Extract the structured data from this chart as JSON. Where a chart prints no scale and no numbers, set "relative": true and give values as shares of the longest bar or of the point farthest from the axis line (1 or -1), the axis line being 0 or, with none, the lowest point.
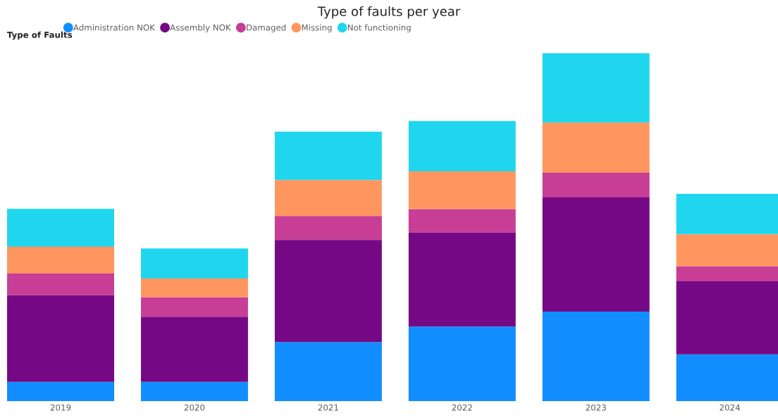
{
  "chart_data": {
    "type": "bar",
    "title": "Type of faults per year",
    "legend_title": "Type of Faults",
    "legend": "top left",
    "stacked": true,
    "relative": true,
    "grid": false,
    "categories": [
      "2019",
      "2020",
      "2021",
      "2022",
      "2023",
      "2024"
    ],
    "series": [
      {
        "name": "Administration NOK",
        "color": "#118dff",
        "values": [
          0.056,
          0.056,
          0.17,
          0.215,
          0.258,
          0.135
        ]
      },
      {
        "name": "Assembly NOK",
        "color": "#750985",
        "values": [
          0.249,
          0.187,
          0.294,
          0.27,
          0.328,
          0.21
        ]
      },
      {
        "name": "Damaged",
        "color": "#c83d95",
        "values": [
          0.062,
          0.056,
          0.069,
          0.067,
          0.071,
          0.043
        ]
      },
      {
        "name": "Missing",
        "color": "#ff9660",
        "values": [
          0.077,
          0.054,
          0.103,
          0.109,
          0.144,
          0.092
        ]
      },
      {
        "name": "Not functioning",
        "color": "#1fd6ee",
        "values": [
          0.109,
          0.086,
          0.139,
          0.144,
          0.199,
          0.116
        ]
      }
    ]
  }
}
